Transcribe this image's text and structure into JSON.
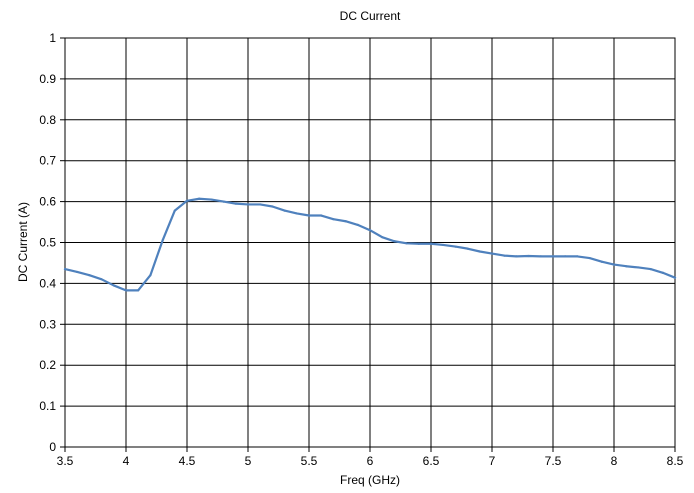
{
  "chart_data": {
    "type": "line",
    "title": "DC Current",
    "xlabel": "Freq (GHz)",
    "ylabel": "DC Current (A)",
    "xlim": [
      3.5,
      8.5
    ],
    "ylim": [
      0,
      1
    ],
    "xticks": [
      "3.5",
      "4",
      "4.5",
      "5",
      "5.5",
      "6",
      "6.5",
      "7",
      "7.5",
      "8",
      "8.5"
    ],
    "yticks": [
      "0",
      "0.1",
      "0.2",
      "0.3",
      "0.4",
      "0.5",
      "0.6",
      "0.7",
      "0.8",
      "0.9",
      "1"
    ],
    "grid": true,
    "legend": "none",
    "line_color": "#4f81bd",
    "series": [
      {
        "x": [
          3.5,
          3.6,
          3.7,
          3.8,
          3.9,
          4.0,
          4.1,
          4.2,
          4.3,
          4.4,
          4.5,
          4.6,
          4.7,
          4.8,
          4.9,
          5.0,
          5.1,
          5.2,
          5.3,
          5.4,
          5.5,
          5.6,
          5.7,
          5.8,
          5.9,
          6.0,
          6.1,
          6.2,
          6.3,
          6.4,
          6.5,
          6.6,
          6.7,
          6.8,
          6.9,
          7.0,
          7.1,
          7.2,
          7.3,
          7.4,
          7.5,
          7.6,
          7.7,
          7.8,
          7.9,
          8.0,
          8.1,
          8.2,
          8.3,
          8.4,
          8.5
        ],
        "values": [
          0.435,
          0.428,
          0.42,
          0.41,
          0.395,
          0.383,
          0.383,
          0.42,
          0.505,
          0.578,
          0.602,
          0.607,
          0.605,
          0.6,
          0.595,
          0.593,
          0.593,
          0.588,
          0.578,
          0.571,
          0.566,
          0.566,
          0.557,
          0.552,
          0.543,
          0.53,
          0.513,
          0.503,
          0.498,
          0.497,
          0.497,
          0.494,
          0.49,
          0.485,
          0.478,
          0.473,
          0.468,
          0.466,
          0.467,
          0.466,
          0.466,
          0.466,
          0.466,
          0.462,
          0.453,
          0.446,
          0.442,
          0.439,
          0.435,
          0.426,
          0.414
        ]
      }
    ]
  }
}
